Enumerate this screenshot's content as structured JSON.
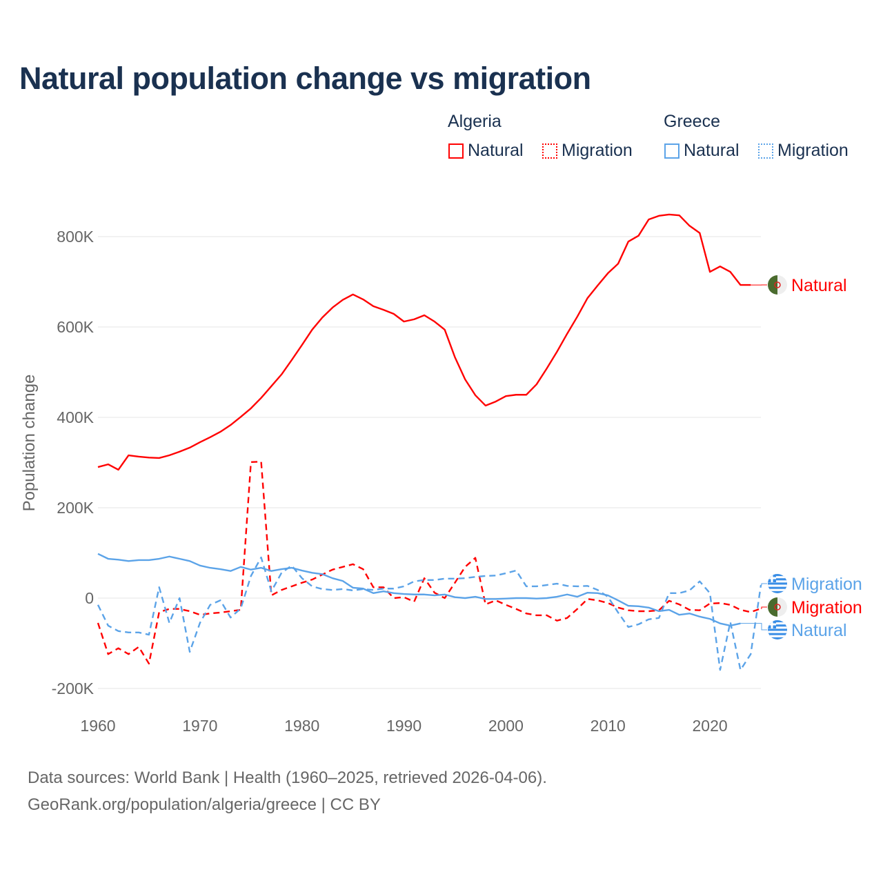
{
  "title": "Natural population change vs migration",
  "legend": {
    "groups": [
      {
        "name": "Algeria",
        "items": [
          "Natural",
          "Migration"
        ]
      },
      {
        "name": "Greece",
        "items": [
          "Natural",
          "Migration"
        ]
      }
    ]
  },
  "source": {
    "line1": "Data sources: World Bank | Health (1960–2025, retrieved 2026-04-06).",
    "line2": "GeoRank.org/population/algeria/greece | CC BY"
  },
  "colors": {
    "algeria": "#ff0000",
    "greece": "#5ba3e8"
  },
  "chart_data": {
    "type": "line",
    "title": "Natural population change vs migration",
    "xlabel": "",
    "ylabel": "Population change",
    "xlim": [
      1960,
      2025
    ],
    "ylim": [
      -200000,
      900000
    ],
    "xticks": [
      1960,
      1970,
      1980,
      1990,
      2000,
      2010,
      2020
    ],
    "yticks": [
      {
        "v": -200000,
        "label": "-200K"
      },
      {
        "v": 0,
        "label": "0"
      },
      {
        "v": 200000,
        "label": "200K"
      },
      {
        "v": 400000,
        "label": "400K"
      },
      {
        "v": 600000,
        "label": "600K"
      },
      {
        "v": 800000,
        "label": "800K"
      }
    ],
    "x_start": 1960,
    "series": [
      {
        "name": "Algeria Natural",
        "label": "Natural",
        "country": "Algeria",
        "style": "solid",
        "color": "#ff0000",
        "values_k": [
          290,
          296,
          284,
          316,
          313,
          311,
          310,
          316,
          324,
          333,
          345,
          356,
          368,
          383,
          401,
          420,
          443,
          469,
          495,
          527,
          560,
          594,
          621,
          643,
          660,
          672,
          661,
          646,
          638,
          629,
          612,
          617,
          626,
          612,
          594,
          533,
          484,
          449,
          426,
          435,
          447,
          450,
          450,
          473,
          508,
          545,
          585,
          623,
          664,
          692,
          719,
          740,
          789,
          802,
          838,
          846,
          849,
          847,
          824,
          808,
          722,
          734,
          722,
          693,
          693
        ]
      },
      {
        "name": "Algeria Migration",
        "label": "Migration",
        "country": "Algeria",
        "style": "dashed",
        "color": "#ff0000",
        "values_k": [
          -55,
          -124,
          -111,
          -124,
          -108,
          -145,
          -31,
          -24,
          -24,
          -29,
          -37,
          -34,
          -32,
          -29,
          -26,
          301,
          302,
          6,
          18,
          26,
          34,
          41,
          52,
          63,
          69,
          75,
          64,
          24,
          24,
          0,
          2,
          -8,
          44,
          12,
          0,
          34,
          69,
          89,
          -14,
          -5,
          -15,
          -24,
          -34,
          -38,
          -38,
          -50,
          -44,
          -24,
          -2,
          -5,
          -11,
          -21,
          -27,
          -29,
          -29,
          -27,
          -6,
          -14,
          -26,
          -27,
          -12,
          -11,
          -15,
          -26,
          -31,
          -23
        ]
      },
      {
        "name": "Greece Natural",
        "label": "Natural",
        "country": "Greece",
        "style": "solid",
        "color": "#5ba3e8",
        "values_k": [
          98,
          87,
          85,
          82,
          84,
          84,
          87,
          92,
          87,
          82,
          72,
          67,
          64,
          60,
          69,
          63,
          67,
          60,
          64,
          67,
          61,
          56,
          53,
          44,
          38,
          23,
          21,
          11,
          15,
          11,
          9,
          8,
          8,
          6,
          8,
          2,
          0,
          3,
          -2,
          -2,
          -1,
          0,
          0,
          -1,
          0,
          3,
          8,
          3,
          12,
          11,
          6,
          -5,
          -17,
          -18,
          -21,
          -29,
          -26,
          -37,
          -34,
          -41,
          -46,
          -56,
          -61,
          -56
        ]
      },
      {
        "name": "Greece Migration",
        "label": "Migration",
        "country": "Greece",
        "style": "dashed",
        "color": "#5ba3e8",
        "values_k": [
          -15,
          -61,
          -73,
          -76,
          -76,
          -81,
          24,
          -55,
          0,
          -119,
          -55,
          -15,
          -5,
          -43,
          -23,
          49,
          90,
          15,
          56,
          72,
          44,
          26,
          20,
          18,
          20,
          17,
          20,
          18,
          21,
          21,
          26,
          37,
          40,
          40,
          43,
          43,
          44,
          47,
          49,
          50,
          55,
          61,
          26,
          26,
          29,
          32,
          27,
          26,
          27,
          18,
          3,
          -32,
          -64,
          -58,
          -47,
          -44,
          11,
          11,
          17,
          37,
          11,
          -159,
          -53,
          -159,
          -124,
          29
        ]
      }
    ]
  }
}
